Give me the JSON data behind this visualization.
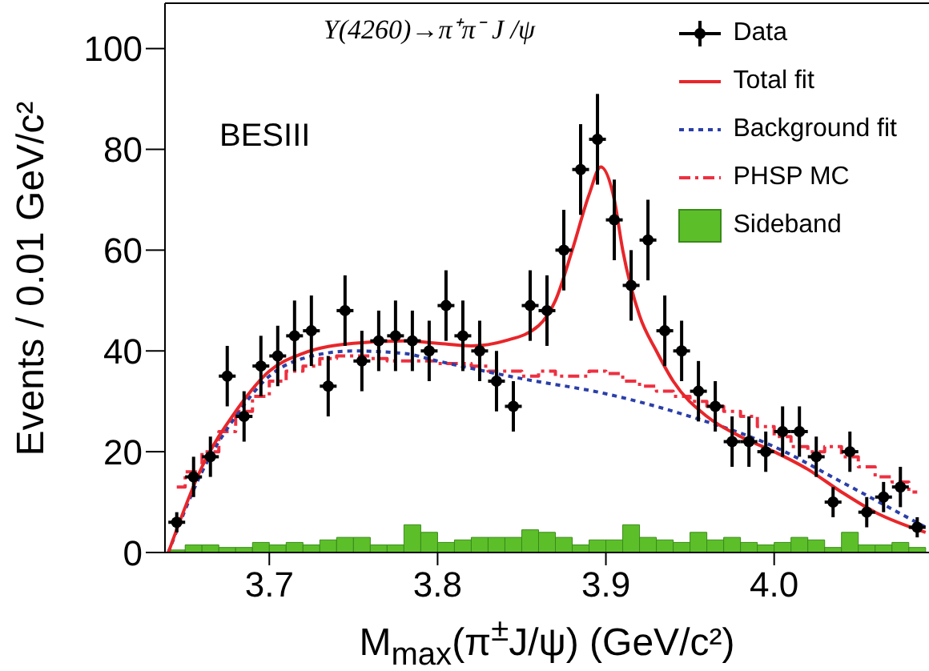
{
  "chart_data": {
    "type": "scatter",
    "title": "Y(4260)→π⁺π⁻ J /ψ",
    "xlabel": "M$_{max}$(π$^{±}$J/ψ) (GeV/c²)",
    "ylabel": "Events / 0.01 GeV/c²",
    "annotations": [
      "BESIII"
    ],
    "xlim": [
      3.638,
      4.092
    ],
    "xticks": [
      3.7,
      3.8,
      3.9,
      {
        "value": 4,
        "label": "4.0"
      }
    ],
    "ylim": [
      0,
      109
    ],
    "yticks": [
      0,
      20,
      40,
      60,
      80,
      100
    ],
    "grid": false,
    "legend": "top right",
    "series": [
      {
        "name": "Sideband",
        "type": "histogram",
        "color": "#5cbf2a",
        "bins": [
          3.64,
          3.65,
          3.66,
          3.67,
          3.68,
          3.69,
          3.7,
          3.71,
          3.72,
          3.73,
          3.74,
          3.75,
          3.76,
          3.77,
          3.78,
          3.79,
          3.8,
          3.81,
          3.82,
          3.83,
          3.84,
          3.85,
          3.86,
          3.87,
          3.88,
          3.89,
          3.9,
          3.91,
          3.92,
          3.93,
          3.94,
          3.95,
          3.96,
          3.97,
          3.98,
          3.99,
          4,
          4.01,
          4.02,
          4.03,
          4.04,
          4.05,
          4.06,
          4.07,
          4.08,
          4.09
        ],
        "values": [
          0.5,
          1.5,
          1.5,
          1,
          1,
          2,
          1.5,
          2,
          1.5,
          2.5,
          3,
          3,
          1.5,
          1.5,
          5.5,
          4,
          2,
          2.5,
          3,
          3,
          3,
          4.5,
          4,
          3,
          1.5,
          2.5,
          2.5,
          5.5,
          3,
          2.5,
          2,
          4,
          2.5,
          3,
          2,
          1.5,
          2,
          3,
          2.5,
          1,
          4,
          1.5,
          1.5,
          2,
          1
        ]
      },
      {
        "name": "PHSP MC",
        "type": "step",
        "color": "#ee3040",
        "line_style": "dashed",
        "x": [
          3.645,
          3.655,
          3.665,
          3.675,
          3.685,
          3.695,
          3.705,
          3.715,
          3.725,
          3.735,
          3.745,
          3.755,
          3.765,
          3.775,
          3.785,
          3.795,
          3.805,
          3.815,
          3.825,
          3.835,
          3.845,
          3.855,
          3.865,
          3.875,
          3.885,
          3.895,
          3.905,
          3.915,
          3.925,
          3.935,
          3.945,
          3.955,
          3.965,
          3.975,
          3.985,
          3.995,
          4.005,
          4.015,
          4.025,
          4.035,
          4.045,
          4.055,
          4.065,
          4.075,
          4.085
        ],
        "values": [
          13,
          16,
          20,
          24,
          28,
          31,
          34,
          36,
          37,
          38.5,
          39,
          39,
          38.5,
          38,
          38,
          38,
          37.5,
          37.5,
          37,
          36,
          36,
          35,
          36,
          35,
          35,
          36,
          35.5,
          34,
          33,
          32,
          31,
          30,
          29,
          28,
          27,
          25,
          23,
          21,
          20,
          21,
          19,
          17,
          15,
          14,
          12
        ]
      },
      {
        "name": "Background fit",
        "type": "line",
        "color": "#2b3fa8",
        "line_style": "dotted",
        "x": [
          3.64,
          3.66,
          3.68,
          3.7,
          3.72,
          3.75,
          3.78,
          3.8,
          3.85,
          3.9,
          3.95,
          4,
          4.04,
          4.09
        ],
        "values": [
          0,
          16,
          27,
          35,
          38.5,
          40,
          39.5,
          38,
          34.5,
          31.5,
          27,
          21,
          14,
          5
        ]
      },
      {
        "name": "Total fit",
        "type": "line",
        "color": "#e8262a",
        "line_style": "solid",
        "x": [
          3.64,
          3.66,
          3.68,
          3.7,
          3.72,
          3.75,
          3.78,
          3.8,
          3.82,
          3.84,
          3.86,
          3.87,
          3.88,
          3.89,
          3.897,
          3.905,
          3.91,
          3.92,
          3.93,
          3.94,
          3.96,
          3.98,
          4,
          4.02,
          4.04,
          4.06,
          4.09
        ],
        "values": [
          0,
          17,
          28,
          36,
          39.5,
          41.5,
          42,
          41.5,
          41,
          42,
          45,
          50,
          60,
          71,
          76.5,
          70,
          60,
          47,
          40,
          34,
          27,
          23,
          20,
          16.5,
          12,
          8,
          4
        ]
      },
      {
        "name": "Data",
        "color": "#000000",
        "marker": "circle",
        "x": [
          3.645,
          3.655,
          3.665,
          3.675,
          3.685,
          3.695,
          3.705,
          3.715,
          3.725,
          3.735,
          3.745,
          3.755,
          3.765,
          3.775,
          3.785,
          3.795,
          3.805,
          3.815,
          3.825,
          3.835,
          3.845,
          3.855,
          3.865,
          3.875,
          3.885,
          3.895,
          3.905,
          3.915,
          3.925,
          3.935,
          3.945,
          3.955,
          3.965,
          3.975,
          3.985,
          3.995,
          4.005,
          4.015,
          4.025,
          4.035,
          4.045,
          4.055,
          4.065,
          4.075,
          4.085
        ],
        "values": [
          6,
          15,
          19,
          35,
          27,
          37,
          39,
          43,
          44,
          33,
          48,
          38,
          42,
          43,
          42,
          40,
          49,
          43,
          40,
          34,
          29,
          49,
          48,
          60,
          76,
          82,
          66,
          53,
          62,
          44,
          40,
          32,
          29,
          22,
          22,
          20,
          24,
          24,
          19,
          10,
          20,
          8,
          11,
          13,
          5
        ],
        "errors": [
          2,
          4,
          4,
          6,
          5,
          6,
          6,
          7,
          7,
          6,
          7,
          6,
          6,
          7,
          6,
          6,
          7,
          7,
          6,
          6,
          5,
          7,
          7,
          8,
          9,
          9,
          8,
          7,
          8,
          7,
          6,
          6,
          5,
          5,
          5,
          4,
          5,
          5,
          4,
          3,
          4,
          3,
          3,
          4,
          2
        ],
        "xerrors": [
          0.005,
          0.005,
          0.005,
          0.005,
          0.005,
          0.005,
          0.005,
          0.005,
          0.005,
          0.005,
          0.005,
          0.005,
          0.005,
          0.005,
          0.005,
          0.005,
          0.005,
          0.005,
          0.005,
          0.005,
          0.005,
          0.005,
          0.005,
          0.005,
          0.005,
          0.005,
          0.005,
          0.005,
          0.005,
          0.005,
          0.005,
          0.005,
          0.005,
          0.005,
          0.005,
          0.005,
          0.005,
          0.005,
          0.005,
          0.005,
          0.005,
          0.005,
          0.005,
          0.005,
          0.005
        ]
      }
    ]
  }
}
